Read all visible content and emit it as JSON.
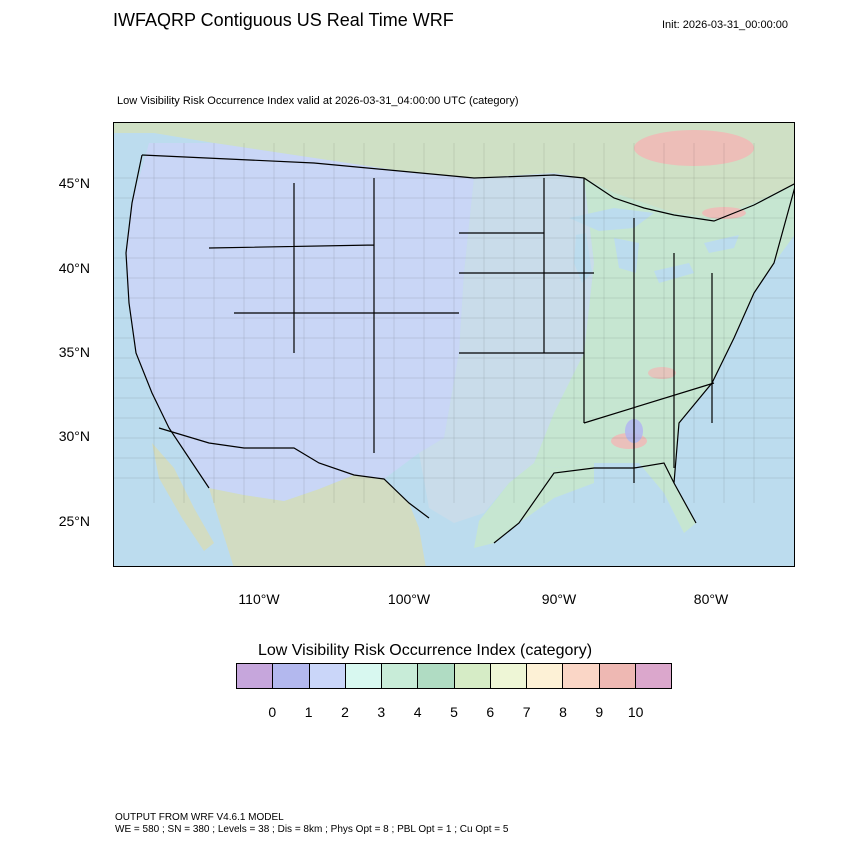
{
  "header": {
    "title": "IWFAQRP Contiguous US Real Time WRF",
    "init": "Init: 2026-03-31_00:00:00"
  },
  "map": {
    "subtitle": "Low Visibility Risk Occurrence Index valid at 2026-03-31_04:00:00 UTC   (category)",
    "lat_labels": [
      "45°N",
      "40°N",
      "35°N",
      "30°N",
      "25°N"
    ],
    "lon_labels": [
      "110°W",
      "100°W",
      "90°W",
      "80°W"
    ],
    "colors": {
      "ocean": "#bcdcee",
      "western_region": "#c9d6f6",
      "eastern_region": "#c6e6d1",
      "plains_region": "#c9dcea",
      "canada_land": "#cfe0c5",
      "mexico_land": "#d2dcc2",
      "high_risk": "#f2b7b5",
      "boundaries": "#000000"
    }
  },
  "legend": {
    "title": "Low Visibility Risk Occurrence Index  (category)",
    "colors": [
      "#c6a6dc",
      "#b3b8ee",
      "#cad6f9",
      "#d8f8f0",
      "#c8ecd8",
      "#b0dcc3",
      "#d6ecc6",
      "#eef6d6",
      "#fdf1d6",
      "#fad6c6",
      "#eeb8b3",
      "#dba7cc"
    ],
    "ticks": [
      "0",
      "1",
      "2",
      "3",
      "4",
      "5",
      "6",
      "7",
      "8",
      "9",
      "10"
    ]
  },
  "footer": {
    "line1": "OUTPUT FROM WRF V4.6.1 MODEL",
    "line2": "WE = 580 ; SN = 380 ; Levels = 38 ; Dis = 8km ; Phys Opt = 8 ; PBL Opt = 1 ; Cu Opt = 5"
  }
}
